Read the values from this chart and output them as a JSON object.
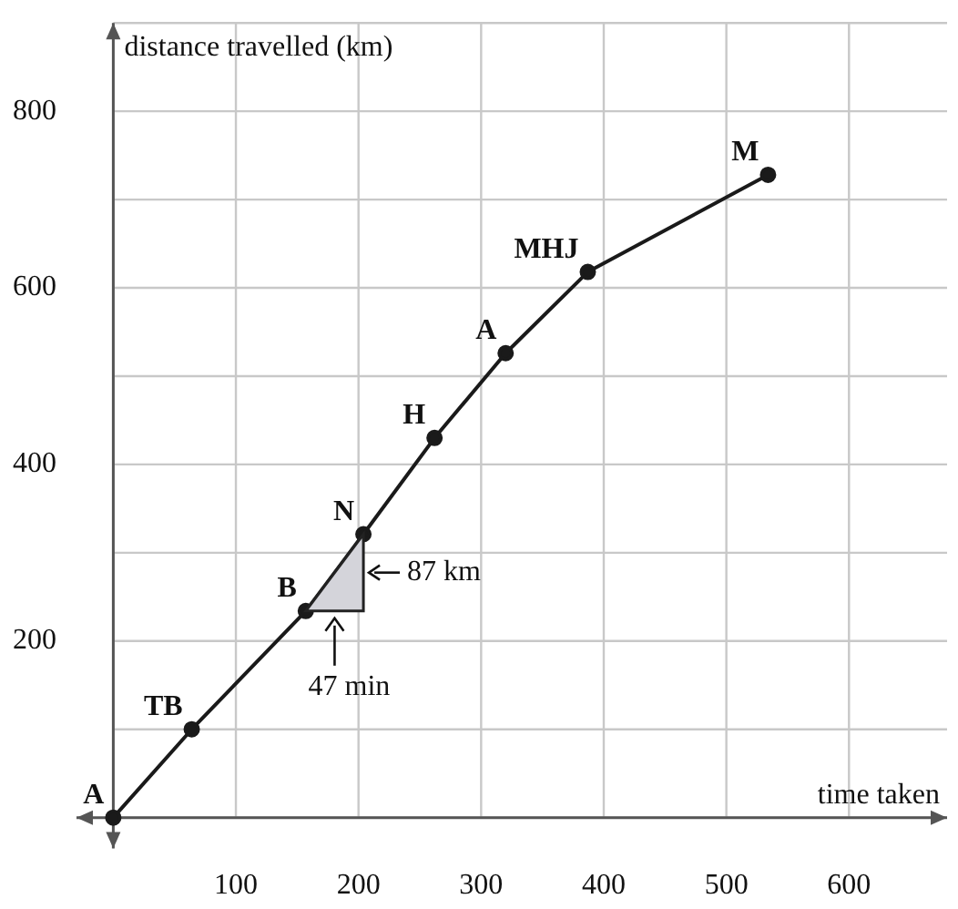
{
  "chart_data": {
    "type": "line",
    "xlabel": "time taken",
    "ylabel": "distance travelled (km)",
    "x": [
      0,
      64,
      157,
      204,
      262,
      320,
      387,
      534
    ],
    "series": [
      {
        "color": "#1a1a1a",
        "values": [
          0,
          100,
          234,
          321,
          430,
          526,
          618,
          728
        ],
        "value_labels": [
          "A",
          "TB",
          "B",
          "N",
          "H",
          "A",
          "MHJ",
          "M"
        ]
      }
    ],
    "xlim": [
      -30,
      680
    ],
    "ylim": [
      -35,
      900
    ],
    "xticks": [
      {
        "value": 0,
        "label": null
      },
      100,
      200,
      300,
      400,
      500,
      600
    ],
    "yticks": [
      {
        "value": 0,
        "label": null
      },
      {
        "value": 100,
        "label": null
      },
      200,
      {
        "value": 300,
        "label": null
      },
      400,
      {
        "value": 500,
        "label": null
      },
      600,
      {
        "value": 700,
        "label": null
      },
      800,
      {
        "value": 900,
        "label": null
      }
    ],
    "grid": true,
    "marker": "circle",
    "line_style": "solid",
    "legend": false,
    "annotations": [
      "87 km",
      "47 min"
    ]
  }
}
